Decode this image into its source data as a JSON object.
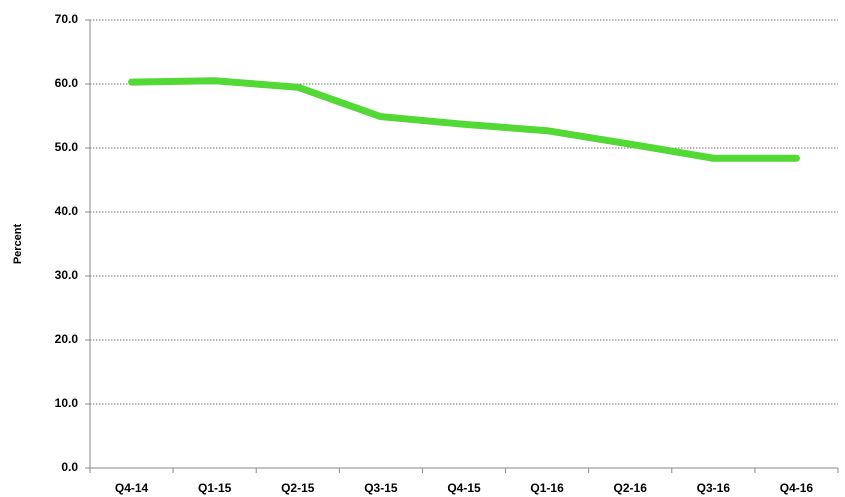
{
  "chart_data": {
    "type": "line",
    "y_label": "Percent",
    "categories": [
      "Q4-14",
      "Q1-15",
      "Q2-15",
      "Q3-15",
      "Q4-15",
      "Q1-16",
      "Q2-16",
      "Q3-16",
      "Q4-16"
    ],
    "series": [
      {
        "name": "Percent",
        "color": "#52d936",
        "values": [
          60.3,
          60.5,
          59.5,
          54.9,
          53.7,
          52.7,
          50.6,
          48.4,
          48.4
        ]
      }
    ],
    "ylim": [
      0,
      70
    ],
    "yticks": [
      {
        "value": 0,
        "label": "0.0"
      },
      {
        "value": 10,
        "label": "10.0"
      },
      {
        "value": 20,
        "label": "20.0"
      },
      {
        "value": 30,
        "label": "30.0"
      },
      {
        "value": 40,
        "label": "40.0"
      },
      {
        "value": 50,
        "label": "50.0"
      },
      {
        "value": 60,
        "label": "60.0"
      },
      {
        "value": 70,
        "label": "70.0"
      }
    ],
    "grid": true
  }
}
